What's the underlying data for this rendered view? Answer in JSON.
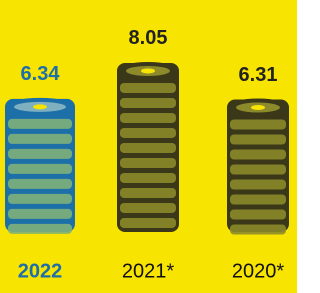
{
  "chart_data": {
    "type": "coin-stack",
    "categories": [
      "2022",
      "2021*",
      "2020*"
    ],
    "values": [
      6.34,
      8.05,
      6.31
    ],
    "colors": [
      "#1d6fa8",
      "#3a3818",
      "#3a3818"
    ],
    "highlight": 0,
    "highlight_color": "#1d6fa8",
    "background": "#f7e400"
  }
}
